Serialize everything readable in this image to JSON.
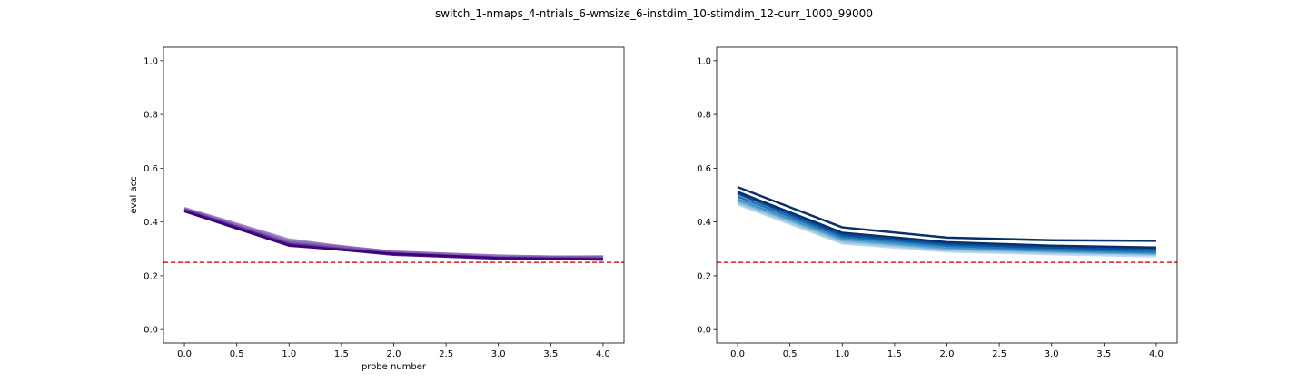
{
  "figure": {
    "suptitle": "switch_1-nmaps_4-ntrials_6-wmsize_6-instdim_10-stimdim_12-curr_1000_99000"
  },
  "chart_data": [
    {
      "type": "line",
      "title": "",
      "xlabel": "probe number",
      "ylabel": "eval acc",
      "xlim": [
        -0.2,
        4.2
      ],
      "ylim": [
        -0.05,
        1.05
      ],
      "xticks": [
        0.0,
        0.5,
        1.0,
        1.5,
        2.0,
        2.5,
        3.0,
        3.5,
        4.0
      ],
      "xtick_labels": [
        "0.0",
        "0.5",
        "1.0",
        "1.5",
        "2.0",
        "2.5",
        "3.0",
        "3.5",
        "4.0"
      ],
      "yticks": [
        0.0,
        0.2,
        0.4,
        0.6,
        0.8,
        1.0
      ],
      "ytick_labels": [
        "0.0",
        "0.2",
        "0.4",
        "0.6",
        "0.8",
        "1.0"
      ],
      "grid": false,
      "reference_line": {
        "y": 0.25,
        "color": "#e41a1c",
        "style": "dashed"
      },
      "x": [
        0,
        1,
        2,
        3,
        4
      ],
      "series": [
        {
          "color": "#a88fc8",
          "values": [
            0.452,
            0.335,
            0.285,
            0.272,
            0.27
          ]
        },
        {
          "color": "#9677bd",
          "values": [
            0.45,
            0.33,
            0.29,
            0.275,
            0.268
          ]
        },
        {
          "color": "#8460b0",
          "values": [
            0.448,
            0.325,
            0.288,
            0.27,
            0.272
          ]
        },
        {
          "color": "#7048a3",
          "values": [
            0.446,
            0.32,
            0.283,
            0.268,
            0.265
          ]
        },
        {
          "color": "#5e3197",
          "values": [
            0.444,
            0.318,
            0.28,
            0.266,
            0.263
          ]
        },
        {
          "color": "#4f1a8a",
          "values": [
            0.442,
            0.315,
            0.278,
            0.264,
            0.262
          ]
        },
        {
          "color": "#3f007d",
          "values": [
            0.44,
            0.312,
            0.282,
            0.266,
            0.26
          ]
        }
      ]
    },
    {
      "type": "line",
      "title": "",
      "xlabel": "",
      "ylabel": "",
      "xlim": [
        -0.2,
        4.2
      ],
      "ylim": [
        -0.05,
        1.05
      ],
      "xticks": [
        0.0,
        0.5,
        1.0,
        1.5,
        2.0,
        2.5,
        3.0,
        3.5,
        4.0
      ],
      "xtick_labels": [
        "0.0",
        "0.5",
        "1.0",
        "1.5",
        "2.0",
        "2.5",
        "3.0",
        "3.5",
        "4.0"
      ],
      "yticks": [
        0.0,
        0.2,
        0.4,
        0.6,
        0.8,
        1.0
      ],
      "ytick_labels": [
        "0.0",
        "0.2",
        "0.4",
        "0.6",
        "0.8",
        "1.0"
      ],
      "grid": false,
      "reference_line": {
        "y": 0.25,
        "color": "#e41a1c",
        "style": "dashed"
      },
      "x": [
        0,
        1,
        2,
        3,
        4
      ],
      "series": [
        {
          "color": "#c6dbef",
          "values": [
            0.465,
            0.32,
            0.29,
            0.28,
            0.272
          ]
        },
        {
          "color": "#9ecae1",
          "values": [
            0.47,
            0.325,
            0.295,
            0.285,
            0.278
          ]
        },
        {
          "color": "#6baed6",
          "values": [
            0.478,
            0.332,
            0.3,
            0.29,
            0.282
          ]
        },
        {
          "color": "#4292c6",
          "values": [
            0.485,
            0.338,
            0.305,
            0.293,
            0.285
          ]
        },
        {
          "color": "#2171b5",
          "values": [
            0.495,
            0.345,
            0.312,
            0.298,
            0.29
          ]
        },
        {
          "color": "#08519c",
          "values": [
            0.505,
            0.352,
            0.318,
            0.305,
            0.298
          ]
        },
        {
          "color": "#08306b",
          "values": [
            0.512,
            0.36,
            0.325,
            0.312,
            0.305
          ]
        },
        {
          "color": "#08306b",
          "values": [
            0.53,
            0.38,
            0.342,
            0.332,
            0.33
          ]
        }
      ]
    }
  ]
}
